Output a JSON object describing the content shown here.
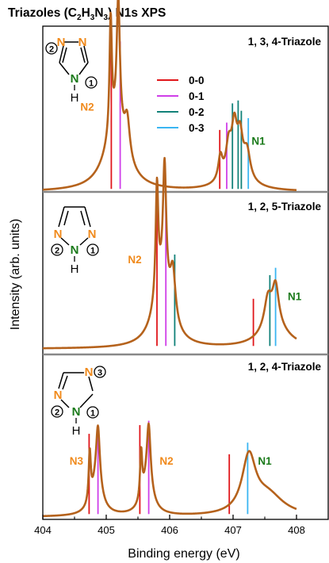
{
  "chart_data": {
    "type": "line",
    "title_parts": [
      "Triazoles (C",
      "2",
      "H",
      "3",
      "N",
      "3",
      ") N1s XPS"
    ],
    "xlabel": "Binding energy (eV)",
    "ylabel": "Intensity (arb. units)",
    "xlim": [
      404,
      408.5
    ],
    "x_ticks": [
      404,
      405,
      406,
      407,
      408
    ],
    "legend": {
      "placement": "top-panel-center",
      "entries": [
        {
          "label": "0-0",
          "color": "#e0161b"
        },
        {
          "label": "0-1",
          "color": "#cf3ee8"
        },
        {
          "label": "0-2",
          "color": "#128279"
        },
        {
          "label": "0-3",
          "color": "#3ab5f2"
        }
      ]
    },
    "curve_color": "#b5621c",
    "label_colors": {
      "orange": "#f08a1c",
      "green": "#1a7a1a"
    },
    "panels": [
      {
        "name": "1, 3, 4-Triazole",
        "spectrum": {
          "baseline": 0.0,
          "peaks": [
            {
              "x": 405.07,
              "h": 0.78,
              "w": 0.022
            },
            {
              "x": 405.19,
              "h": 0.86,
              "w": 0.03
            },
            {
              "x": 405.33,
              "h": 0.26,
              "w": 0.05
            },
            {
              "x": 405.15,
              "h": 0.44,
              "w": 0.2
            },
            {
              "x": 406.8,
              "h": 0.16,
              "w": 0.04
            },
            {
              "x": 406.93,
              "h": 0.2,
              "w": 0.05
            },
            {
              "x": 407.02,
              "h": 0.3,
              "w": 0.05
            },
            {
              "x": 407.11,
              "h": 0.24,
              "w": 0.05
            },
            {
              "x": 407.22,
              "h": 0.18,
              "w": 0.06
            },
            {
              "x": 407.05,
              "h": 0.11,
              "w": 0.24
            }
          ]
        },
        "sticks": [
          {
            "x": 405.08,
            "top": 0.97,
            "c": 0
          },
          {
            "x": 405.22,
            "top": 1.02,
            "c": 1
          },
          {
            "x": 406.79,
            "top": 0.42,
            "c": 0
          },
          {
            "x": 406.9,
            "top": 0.47,
            "c": 1
          },
          {
            "x": 406.99,
            "top": 0.6,
            "c": 2
          },
          {
            "x": 407.08,
            "top": 0.62,
            "c": 2
          },
          {
            "x": 407.13,
            "top": 0.55,
            "c": 2
          },
          {
            "x": 407.24,
            "top": 0.5,
            "c": 3
          }
        ],
        "labels": [
          {
            "text": "N2",
            "x": 404.7,
            "y": 0.55,
            "color": "orange"
          },
          {
            "text": "N1",
            "x": 407.4,
            "y": 0.32,
            "color": "green"
          }
        ]
      },
      {
        "name": "1, 2, 5-Triazole",
        "spectrum": {
          "baseline": 0.0,
          "peaks": [
            {
              "x": 405.8,
              "h": 0.76,
              "w": 0.025
            },
            {
              "x": 405.92,
              "h": 0.82,
              "w": 0.03
            },
            {
              "x": 406.05,
              "h": 0.34,
              "w": 0.05
            },
            {
              "x": 405.88,
              "h": 0.42,
              "w": 0.16
            },
            {
              "x": 407.55,
              "h": 0.2,
              "w": 0.07
            },
            {
              "x": 407.67,
              "h": 0.26,
              "w": 0.06
            },
            {
              "x": 407.65,
              "h": 0.15,
              "w": 0.26
            }
          ]
        },
        "sticks": [
          {
            "x": 405.8,
            "top": 0.94,
            "c": 0
          },
          {
            "x": 405.94,
            "top": 1.05,
            "c": 1
          },
          {
            "x": 406.08,
            "top": 0.64,
            "c": 2
          },
          {
            "x": 407.32,
            "top": 0.34,
            "c": 0
          },
          {
            "x": 407.58,
            "top": 0.5,
            "c": 2
          },
          {
            "x": 407.67,
            "top": 0.55,
            "c": 3
          }
        ],
        "labels": [
          {
            "text": "N2",
            "x": 405.45,
            "y": 0.58,
            "color": "orange"
          },
          {
            "text": "N1",
            "x": 407.97,
            "y": 0.33,
            "color": "green"
          }
        ]
      },
      {
        "name": "1, 2, 4-Triazole",
        "spectrum": {
          "baseline": 0.0,
          "peaks": [
            {
              "x": 404.74,
              "h": 0.34,
              "w": 0.02
            },
            {
              "x": 404.87,
              "h": 0.4,
              "w": 0.035
            },
            {
              "x": 404.85,
              "h": 0.22,
              "w": 0.1
            },
            {
              "x": 405.55,
              "h": 0.33,
              "w": 0.02
            },
            {
              "x": 405.67,
              "h": 0.41,
              "w": 0.035
            },
            {
              "x": 405.65,
              "h": 0.22,
              "w": 0.1
            },
            {
              "x": 407.25,
              "h": 0.38,
              "w": 0.13
            },
            {
              "x": 407.55,
              "h": 0.14,
              "w": 0.3
            }
          ]
        },
        "sticks": [
          {
            "x": 404.73,
            "top": 0.57,
            "c": 0
          },
          {
            "x": 404.87,
            "top": 0.62,
            "c": 1
          },
          {
            "x": 405.53,
            "top": 0.63,
            "c": 0
          },
          {
            "x": 405.67,
            "top": 0.66,
            "c": 1
          },
          {
            "x": 406.94,
            "top": 0.43,
            "c": 0
          },
          {
            "x": 407.23,
            "top": 0.51,
            "c": 3
          }
        ],
        "labels": [
          {
            "text": "N3",
            "x": 404.53,
            "y": 0.36,
            "color": "orange"
          },
          {
            "text": "N2",
            "x": 405.95,
            "y": 0.36,
            "color": "orange"
          },
          {
            "text": "N1",
            "x": 407.5,
            "y": 0.36,
            "color": "green"
          }
        ]
      }
    ]
  },
  "molecules": {
    "m134": {
      "atoms": [
        "N",
        "2",
        "N",
        "N",
        "1",
        "H"
      ]
    },
    "m125": {
      "atoms": [
        "N",
        "2",
        "N",
        "1",
        "N",
        "H"
      ]
    },
    "m124": {
      "atoms": [
        "N",
        "3",
        "N",
        "2",
        "N",
        "1",
        "H"
      ]
    }
  }
}
